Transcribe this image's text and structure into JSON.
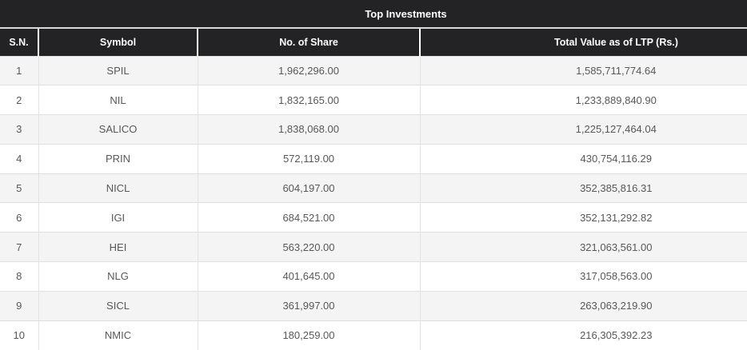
{
  "table": {
    "title": "Top Investments",
    "columns": [
      "S.N.",
      "Symbol",
      "No. of Share",
      "Total Value as of LTP (Rs.)"
    ],
    "rows": [
      [
        "1",
        "SPIL",
        "1,962,296.00",
        "1,585,711,774.64"
      ],
      [
        "2",
        "NIL",
        "1,832,165.00",
        "1,233,889,840.90"
      ],
      [
        "3",
        "SALICO",
        "1,838,068.00",
        "1,225,127,464.04"
      ],
      [
        "4",
        "PRIN",
        "572,119.00",
        "430,754,116.29"
      ],
      [
        "5",
        "NICL",
        "604,197.00",
        "352,385,816.31"
      ],
      [
        "6",
        "IGI",
        "684,521.00",
        "352,131,292.82"
      ],
      [
        "7",
        "HEI",
        "563,220.00",
        "321,063,561.00"
      ],
      [
        "8",
        "NLG",
        "401,645.00",
        "317,058,563.00"
      ],
      [
        "9",
        "SICL",
        "361,997.00",
        "263,063,219.90"
      ],
      [
        "10",
        "NMIC",
        "180,259.00",
        "216,305,392.23"
      ]
    ]
  },
  "colors": {
    "header_bg": "#232325",
    "header_text": "#ffffff",
    "row_stripe": "#f4f4f4",
    "row_plain": "#ffffff",
    "grid_border": "#e0e0e0",
    "header_separator": "#ffffff",
    "title_bottom_border": "#d9d9d9",
    "body_text": "#58585b"
  }
}
